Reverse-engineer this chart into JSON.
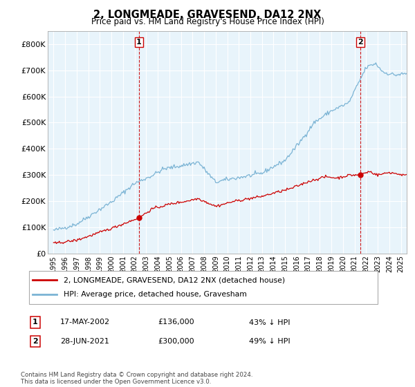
{
  "title": "2, LONGMEADE, GRAVESEND, DA12 2NX",
  "subtitle": "Price paid vs. HM Land Registry's House Price Index (HPI)",
  "hpi_label": "HPI: Average price, detached house, Gravesham",
  "property_label": "2, LONGMEADE, GRAVESEND, DA12 2NX (detached house)",
  "hpi_color": "#7ab3d4",
  "property_color": "#cc0000",
  "marker_color": "#cc0000",
  "vline_color": "#cc0000",
  "sale1_date_num": 2002.38,
  "sale1_value": 136000,
  "sale2_date_num": 2021.49,
  "sale2_value": 300000,
  "sale1_date_text": "17-MAY-2002",
  "sale1_price_text": "£136,000",
  "sale1_hpi_text": "43% ↓ HPI",
  "sale2_date_text": "28-JUN-2021",
  "sale2_price_text": "£300,000",
  "sale2_hpi_text": "49% ↓ HPI",
  "footer": "Contains HM Land Registry data © Crown copyright and database right 2024.\nThis data is licensed under the Open Government Licence v3.0.",
  "ylim": [
    0,
    850000
  ],
  "xlim": [
    1994.5,
    2025.5
  ],
  "yticks": [
    0,
    100000,
    200000,
    300000,
    400000,
    500000,
    600000,
    700000,
    800000
  ],
  "ytick_labels": [
    "£0",
    "£100K",
    "£200K",
    "£300K",
    "£400K",
    "£500K",
    "£600K",
    "£700K",
    "£800K"
  ],
  "xticks": [
    1995,
    1996,
    1997,
    1998,
    1999,
    2000,
    2001,
    2002,
    2003,
    2004,
    2005,
    2006,
    2007,
    2008,
    2009,
    2010,
    2011,
    2012,
    2013,
    2014,
    2015,
    2016,
    2017,
    2018,
    2019,
    2020,
    2021,
    2022,
    2023,
    2024,
    2025
  ],
  "plot_bg_color": "#e8f4fb",
  "background_color": "#ffffff",
  "grid_color": "#ffffff"
}
